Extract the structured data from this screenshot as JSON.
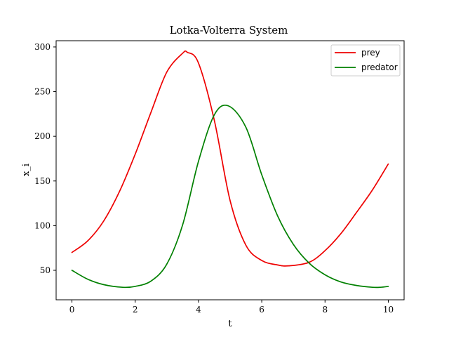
{
  "chart_data": {
    "type": "line",
    "title": "Lotka-Volterra System",
    "xlabel": "t",
    "ylabel": "x_i",
    "xlim": [
      -0.5,
      10.5
    ],
    "ylim": [
      17,
      307
    ],
    "xticks": [
      0,
      2,
      4,
      6,
      8,
      10
    ],
    "yticks": [
      50,
      100,
      150,
      200,
      250,
      300
    ],
    "grid": false,
    "legend_position": "top-right",
    "series": [
      {
        "name": "prey",
        "color": "#ee0000",
        "x": [
          0,
          0.5,
          1,
          1.5,
          2,
          2.5,
          3,
          3.5,
          3.65,
          4,
          4.5,
          5,
          5.5,
          6,
          6.5,
          6.85,
          7.5,
          8,
          8.5,
          9,
          9.5,
          10
        ],
        "y": [
          70,
          83,
          105,
          138,
          180,
          227,
          272,
          293,
          294,
          282,
          218,
          128,
          78,
          61,
          56,
          55,
          59,
          72,
          91,
          115,
          140,
          169
        ]
      },
      {
        "name": "predator",
        "color": "#008000",
        "x": [
          0,
          0.5,
          1,
          1.6,
          2,
          2.5,
          3,
          3.5,
          4,
          4.5,
          4.95,
          5.5,
          6,
          6.5,
          7,
          7.5,
          8,
          8.5,
          9,
          9.5,
          9.75,
          10
        ],
        "y": [
          50,
          40,
          34,
          31,
          32,
          38,
          57,
          101,
          172,
          224,
          234,
          210,
          157,
          111,
          79,
          58,
          45,
          37,
          33,
          31,
          31,
          32
        ]
      }
    ]
  }
}
